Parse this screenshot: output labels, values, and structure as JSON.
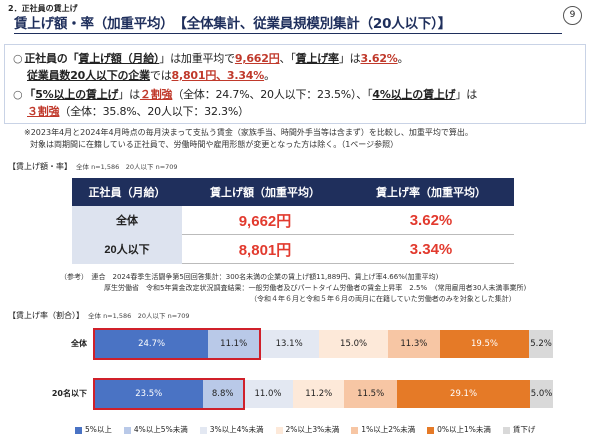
{
  "header": {
    "section": "2．正社員の賃上げ",
    "title": "賃上げ額・率（加重平均）　【全体集計、従業員規模別集計（20人以下）】",
    "page_number": "9"
  },
  "bullets": {
    "b1": {
      "circle": "○",
      "p1": "正社員の「",
      "p2": "賃上げ額（月給）",
      "p3": "」は加重平均で",
      "p4": "9,662円",
      "p5": "、「",
      "p6": "賃上げ率",
      "p7": "」は",
      "p8": "3.62%",
      "p9": "。",
      "line2a": "従業員数20人以下の企業",
      "line2b": "では",
      "line2c": "8,801円、3.34%",
      "line2d": "。"
    },
    "b2": {
      "circle": "○",
      "p1": "「",
      "p2": "5%以上の賃上げ",
      "p3": "」は",
      "p4": "２割強",
      "p5": "（全体：24.7%、20人以下：23.5%）、「",
      "p6": "4%以上の賃上げ",
      "p7": "」は",
      "line2a": "３割強",
      "line2b": "（全体：35.8%、20人以下：32.3%）"
    }
  },
  "notes": {
    "n1": "※2023年4月と2024年4月時点の毎月決まって支払う賃金（家族手当、時間外手当等は含まず）を比較し、加重平均で算出。",
    "n2": "対象は両期間に在籍している正社員で、労働時間や雇用形態が変更となった方は除く。（1ページ参照）"
  },
  "table_section": {
    "label": "【賃上げ額・率】",
    "sample": "全体 n=1,586　20人以下 n=709"
  },
  "table": {
    "headers": [
      "正社員（月給）",
      "賃上げ額（加重平均）",
      "賃上げ率（加重平均）"
    ],
    "rows": [
      {
        "label": "全体",
        "amount": "9,662円",
        "rate": "3.62%"
      },
      {
        "label": "20人以下",
        "amount": "8,801円",
        "rate": "3.34%"
      }
    ]
  },
  "reference": {
    "l1": "（参考）　連合　2024春季生活闘争第5回回答集計：300名未満の企業の賃上げ額11,889円、賃上げ率4.66%(加重平均)",
    "l2": "厚生労働省　令和5年賃金改定状況調査結果：一般労働者及びパートタイム労働者の賃金上昇率　2.5%　（常用雇用者30人未満事業所)",
    "l3": "（令和４年６月と令和５年６月の両月に在籍していた労働者のみを対象とした集計）"
  },
  "bar_section": {
    "label": "【賃上げ率（割合）】",
    "sample": "全体 n=1,586　20人以下 n=709"
  },
  "chart_data": {
    "type": "bar",
    "stacked": true,
    "orientation": "horizontal",
    "categories": [
      "全体",
      "20名以下"
    ],
    "series": [
      {
        "name": "5%以上",
        "color": "#4a73c4",
        "values": [
          24.7,
          23.5
        ],
        "labels": [
          "24.7%",
          "23.5%"
        ]
      },
      {
        "name": "4%以上5%未満",
        "color": "#b9c9e8",
        "values": [
          11.1,
          8.8
        ],
        "labels": [
          "11.1%",
          "8.8%"
        ]
      },
      {
        "name": "3%以上4%未満",
        "color": "#e3e8f2",
        "values": [
          13.1,
          11.0
        ],
        "labels": [
          "13.1%",
          "11.0%"
        ]
      },
      {
        "name": "2%以上3%未満",
        "color": "#fde9d9",
        "values": [
          15.0,
          11.2
        ],
        "labels": [
          "15.0%",
          "11.2%"
        ]
      },
      {
        "name": "1%以上2%未満",
        "color": "#f7c6a4",
        "values": [
          11.3,
          11.5
        ],
        "labels": [
          "11.3%",
          "11.5%"
        ]
      },
      {
        "name": "0%以上1%未満",
        "color": "#e57a27",
        "values": [
          19.5,
          29.1
        ],
        "labels": [
          "19.5%",
          "29.1%"
        ]
      },
      {
        "name": "賃下げ",
        "color": "#d9d9d9",
        "values": [
          5.2,
          5.0
        ],
        "labels": [
          "5.2%",
          "5.0%"
        ]
      }
    ],
    "xlim": [
      0,
      100
    ],
    "legend_position": "bottom"
  }
}
